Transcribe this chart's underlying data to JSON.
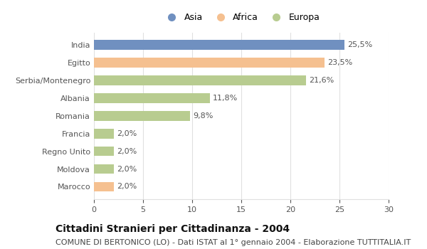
{
  "categories": [
    "India",
    "Egitto",
    "Serbia/Montenegro",
    "Albania",
    "Romania",
    "Francia",
    "Regno Unito",
    "Moldova",
    "Marocco"
  ],
  "values": [
    25.5,
    23.5,
    21.6,
    11.8,
    9.8,
    2.0,
    2.0,
    2.0,
    2.0
  ],
  "labels": [
    "25,5%",
    "23,5%",
    "21,6%",
    "11,8%",
    "9,8%",
    "2,0%",
    "2,0%",
    "2,0%",
    "2,0%"
  ],
  "colors": [
    "#7090c0",
    "#f5c090",
    "#b8cc90",
    "#b8cc90",
    "#b8cc90",
    "#b8cc90",
    "#b8cc90",
    "#b8cc90",
    "#f5c090"
  ],
  "legend_labels": [
    "Asia",
    "Africa",
    "Europa"
  ],
  "legend_colors": [
    "#7090c0",
    "#f5c090",
    "#b8cc90"
  ],
  "xlim": [
    0,
    30
  ],
  "xticks": [
    0,
    5,
    10,
    15,
    20,
    25,
    30
  ],
  "title": "Cittadini Stranieri per Cittadinanza - 2004",
  "subtitle": "COMUNE DI BERTONICO (LO) - Dati ISTAT al 1° gennaio 2004 - Elaborazione TUTTITALIA.IT",
  "title_fontsize": 10,
  "subtitle_fontsize": 8,
  "label_fontsize": 8,
  "tick_fontsize": 8,
  "background_color": "#ffffff",
  "grid_color": "#e0e0e0",
  "bar_height": 0.55
}
